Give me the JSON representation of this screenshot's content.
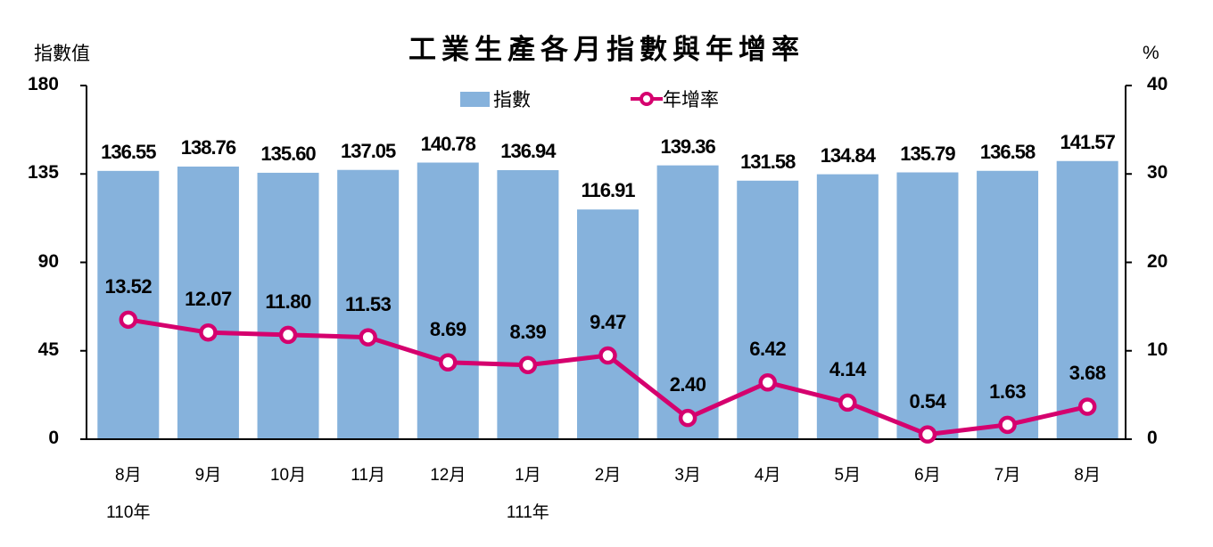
{
  "chart_data": {
    "type": "bar+line",
    "title": "工業生產各月指數與年增率",
    "categories": [
      "8月",
      "9月",
      "10月",
      "11月",
      "12月",
      "1月",
      "2月",
      "3月",
      "4月",
      "5月",
      "6月",
      "7月",
      "8月"
    ],
    "year_labels": [
      {
        "index": 0,
        "label": "110年"
      },
      {
        "index": 5,
        "label": "111年"
      }
    ],
    "series": [
      {
        "name": "指數",
        "type": "bar",
        "axis": "left",
        "color": "#86B2DC",
        "values": [
          136.55,
          138.76,
          135.6,
          137.05,
          140.78,
          136.94,
          116.91,
          139.36,
          131.58,
          134.84,
          135.79,
          136.58,
          141.57
        ],
        "labels": [
          "136.55",
          "138.76",
          "135.60",
          "137.05",
          "140.78",
          "136.94",
          "116.91",
          "139.36",
          "131.58",
          "134.84",
          "135.79",
          "136.58",
          "141.57"
        ]
      },
      {
        "name": "年增率",
        "type": "line",
        "axis": "right",
        "color": "#D5006E",
        "marker": "circle-hollow",
        "values": [
          13.52,
          12.07,
          11.8,
          11.53,
          8.69,
          8.39,
          9.47,
          2.4,
          6.42,
          4.14,
          0.54,
          1.63,
          3.68
        ],
        "labels": [
          "13.52",
          "12.07",
          "11.80",
          "11.53",
          "8.69",
          "8.39",
          "9.47",
          "2.40",
          "6.42",
          "4.14",
          "0.54",
          "1.63",
          "3.68"
        ]
      }
    ],
    "ylabel": "指數值",
    "y2label": "%",
    "ylim": [
      0,
      180
    ],
    "y2lim": [
      0,
      40
    ],
    "yticks": [
      "0",
      "45",
      "90",
      "135",
      "180"
    ],
    "y2ticks": [
      "0",
      "10",
      "20",
      "30",
      "40"
    ],
    "grid": false,
    "legend_position": "top-center"
  },
  "legend": {
    "bar_label": "指數",
    "line_label": "年增率"
  },
  "colors": {
    "bar": "#86B2DC",
    "line": "#D5006E",
    "axis": "#000000"
  }
}
